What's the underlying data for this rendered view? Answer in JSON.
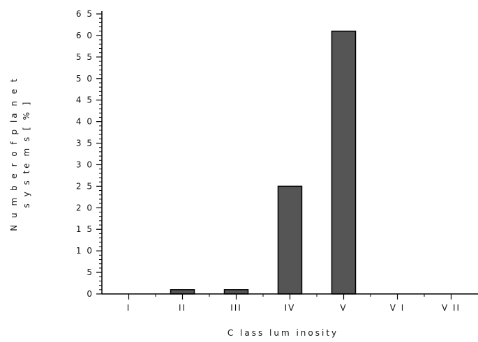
{
  "chart_data": {
    "type": "bar",
    "categories": [
      "I",
      "II",
      "III",
      "IV",
      "V",
      "V I",
      "V II"
    ],
    "values": [
      0,
      1,
      1,
      25,
      61,
      0,
      0
    ],
    "xlabel": "C lass  lum inosity",
    "ylabel_line1": "N u m  b e r  o f p la n e t",
    "ylabel_line2": "s y s te m  s  [ % ]",
    "ylim": [
      0,
      65
    ],
    "yticks": [
      0,
      5,
      10,
      15,
      20,
      25,
      30,
      35,
      40,
      45,
      50,
      55,
      60,
      65
    ],
    "ytick_labels": [
      "0",
      "5",
      "1 0",
      "1 5",
      "2 0",
      "2 5",
      "3 0",
      "3 5",
      "4 0",
      "4 5",
      "5 0",
      "5 5",
      "6 0",
      "6 5"
    ],
    "grid": false,
    "legend": "none",
    "bar_color": "#555555",
    "bar_edge_color": "#000000"
  }
}
